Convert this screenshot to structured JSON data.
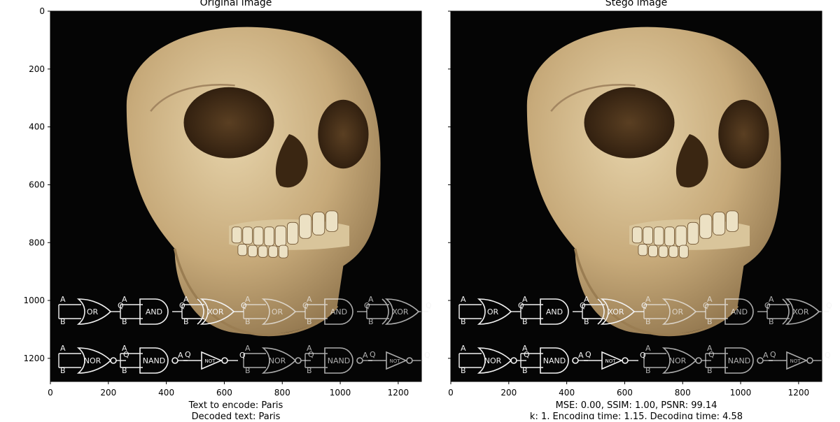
{
  "figure": {
    "background": "#ffffff",
    "image_background": "#050505",
    "gate_line_color": "#f2f2f2"
  },
  "chart_data": [
    {
      "type": "image",
      "title": "Original image",
      "xlim": [
        0,
        1280
      ],
      "ylim": [
        1280,
        0
      ],
      "xticks": [
        0,
        200,
        400,
        600,
        800,
        1000,
        1200
      ],
      "yticks": [
        0,
        200,
        400,
        600,
        800,
        1000,
        1200
      ],
      "show_ytick_labels": true,
      "caption_lines": [
        "Text to encode: Paris",
        "Decoded text: Paris"
      ],
      "image_description_icons": [
        "skull-photo",
        "logic-gate-overlay"
      ]
    },
    {
      "type": "image",
      "title": "Stego image",
      "xlim": [
        0,
        1280
      ],
      "ylim": [
        1280,
        0
      ],
      "xticks": [
        0,
        200,
        400,
        600,
        800,
        1000,
        1200
      ],
      "yticks": [
        0,
        200,
        400,
        600,
        800,
        1000,
        1200
      ],
      "show_ytick_labels": false,
      "caption_lines": [
        "MSE: 0.00, SSIM: 1.00, PSNR: 99.14",
        "k: 1, Encoding time: 1.15, Decoding time: 4.58"
      ],
      "image_description_icons": [
        "skull-photo",
        "logic-gate-overlay"
      ]
    }
  ],
  "gate_overlay": {
    "input_labels": [
      "A",
      "B"
    ],
    "output_label": "Q",
    "row1": [
      "OR",
      "AND",
      "XOR",
      "OR",
      "AND",
      "XOR"
    ],
    "row2": [
      "NOR",
      "NAND",
      "NOT",
      "NOR",
      "NAND",
      "NOT"
    ]
  }
}
